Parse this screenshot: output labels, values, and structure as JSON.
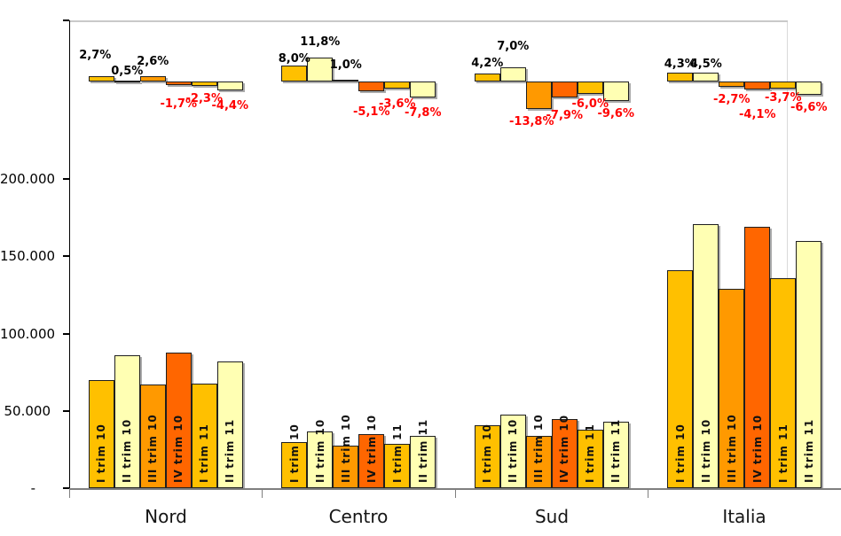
{
  "chart_data": {
    "type": "bar",
    "title": "",
    "categories": [
      "Nord",
      "Centro",
      "Sud",
      "Italia"
    ],
    "series": [
      {
        "name": "I trim 10",
        "color": "#FFC000",
        "values": [
          70000,
          30000,
          41000,
          141000
        ],
        "pct_change": [
          2.7,
          8.0,
          4.2,
          4.3
        ],
        "pct_labels": [
          "2,7%",
          "8,0%",
          "4,2%",
          "4,3%"
        ]
      },
      {
        "name": "II trim 10",
        "color": "#FFFFB3",
        "values": [
          86000,
          37000,
          48000,
          171000
        ],
        "pct_change": [
          0.5,
          11.8,
          7.0,
          4.5
        ],
        "pct_labels": [
          "0,5%",
          "11,8%",
          "7,0%",
          "4,5%"
        ]
      },
      {
        "name": "III trim 10",
        "color": "#FF9900",
        "values": [
          67000,
          28000,
          34000,
          129000
        ],
        "pct_change": [
          2.6,
          1.0,
          -13.8,
          -2.7
        ],
        "pct_labels": [
          "2,6%",
          "1,0%",
          "-13,8%",
          "-2,7%"
        ]
      },
      {
        "name": "IV trim 10",
        "color": "#FF6600",
        "values": [
          88000,
          35000,
          45000,
          169000
        ],
        "pct_change": [
          -1.7,
          -5.1,
          -7.9,
          -4.1
        ],
        "pct_labels": [
          "-1,7%",
          "-5,1%",
          "-7,9%",
          "-4,1%"
        ]
      },
      {
        "name": "I trim 11",
        "color": "#FFC000",
        "values": [
          68000,
          29000,
          38000,
          136000
        ],
        "pct_change": [
          -2.3,
          -3.6,
          -6.0,
          -3.7
        ],
        "pct_labels": [
          "-2,3%",
          "-3,6%",
          "-6,0%",
          "-3,7%"
        ]
      },
      {
        "name": "II trim 11",
        "color": "#FFFFB3",
        "values": [
          82000,
          34000,
          43000,
          160000
        ],
        "pct_change": [
          -4.4,
          -7.8,
          -9.6,
          -6.6
        ],
        "pct_labels": [
          "-4,4%",
          "-7,8%",
          "-9,6%",
          "-6,6%"
        ]
      }
    ],
    "y_axis": {
      "tick_labels": [
        "200.000",
        "150.000",
        "100.000",
        "50.000",
        "-"
      ],
      "tick_values": [
        200000,
        150000,
        100000,
        50000,
        0
      ],
      "ylim": [
        0,
        302000
      ]
    },
    "grid": false,
    "legend": "none",
    "colors": {
      "positive_label": "#000000",
      "negative_label": "#FF0000",
      "axis_line": "#7F7F7F",
      "y_axis_line": "#000000",
      "plot_border": "#C9C9C9",
      "bar_border": "#1F1F1F"
    },
    "layout_hints": {
      "pct_label_dy": [
        [
          -16,
          -3,
          -9,
          12,
          5,
          8
        ],
        [
          0,
          -10,
          -9,
          14,
          8,
          8
        ],
        [
          -4,
          -16,
          5,
          11,
          2,
          5
        ],
        [
          -2,
          -2,
          5,
          19,
          1,
          5
        ]
      ],
      "pct_label_dx": [
        [
          -7,
          0,
          0,
          0,
          0,
          0
        ],
        [
          0,
          0,
          0,
          0,
          0,
          0
        ],
        [
          0,
          0,
          -8,
          0,
          0,
          0
        ],
        [
          0,
          0,
          0,
          0,
          0,
          0
        ]
      ]
    }
  }
}
